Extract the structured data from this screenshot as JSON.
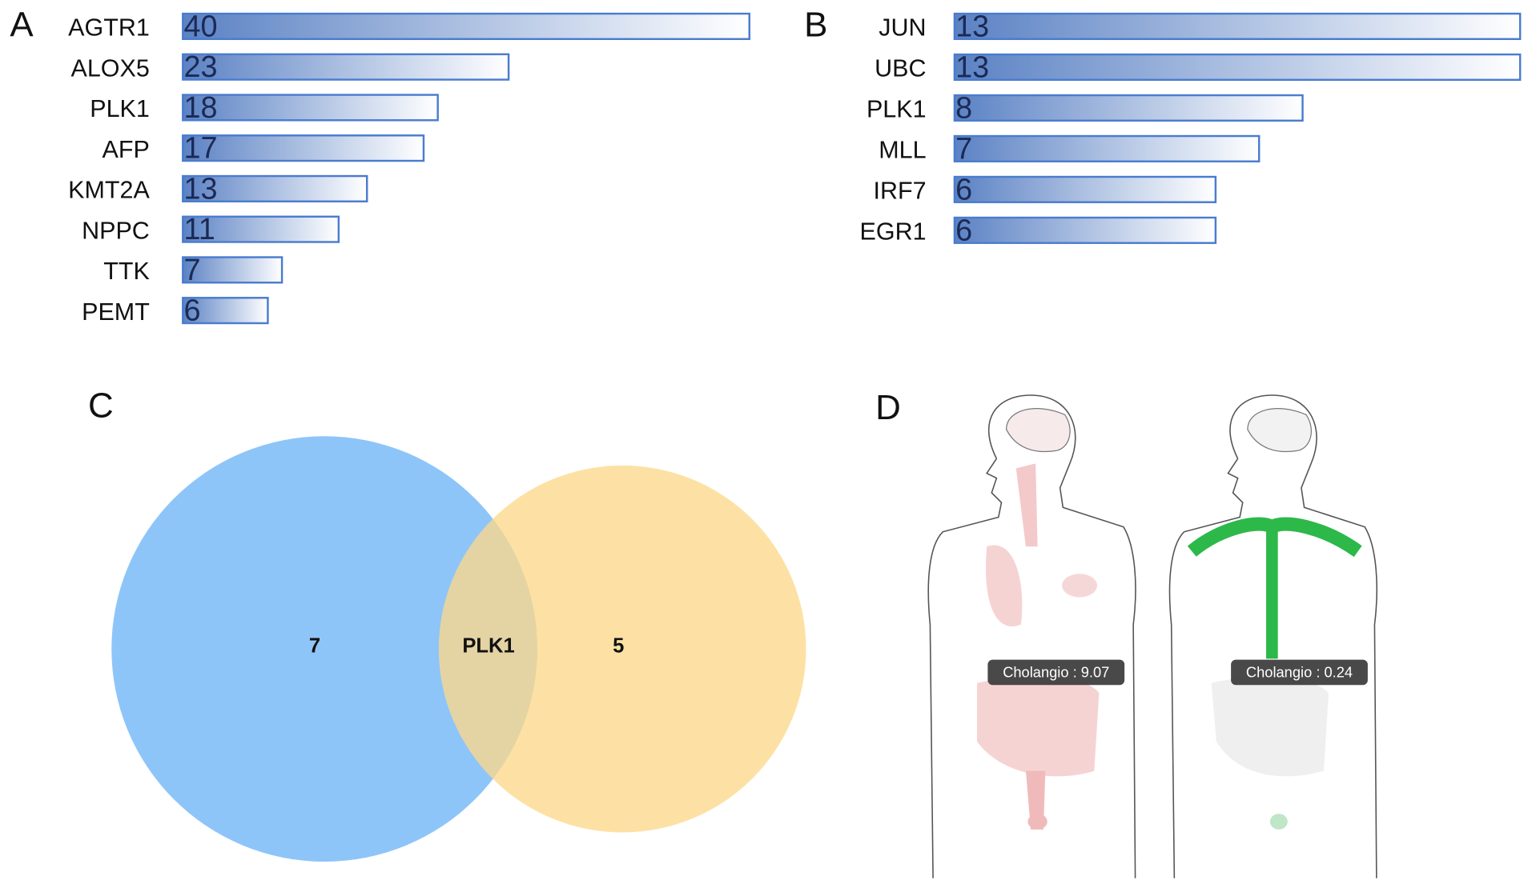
{
  "chart_data": [
    {
      "type": "bar",
      "panel": "A",
      "categories": [
        "AGTR1",
        "ALOX5",
        "PLK1",
        "AFP",
        "KMT2A",
        "NPPC",
        "TTK",
        "PEMT"
      ],
      "values": [
        40,
        23,
        18,
        17,
        13,
        11,
        7,
        6
      ],
      "color": "#5b82c4"
    },
    {
      "type": "bar",
      "panel": "B",
      "categories": [
        "JUN",
        "UBC",
        "PLK1",
        "MLL",
        "IRF7",
        "EGR1"
      ],
      "values": [
        13,
        13,
        8,
        7,
        6,
        6
      ],
      "color": "#5b82c4"
    },
    {
      "type": "venn",
      "panel": "C",
      "sets": [
        {
          "color": "#8ec5f9",
          "count": 7
        },
        {
          "color": "#fcd98a",
          "count": 5
        }
      ],
      "intersection": "PLK1"
    }
  ],
  "panel_d": {
    "panel": "D",
    "bodies": [
      {
        "label": "Cholangio : 9.07"
      },
      {
        "label": "Cholangio : 0.24"
      }
    ]
  }
}
